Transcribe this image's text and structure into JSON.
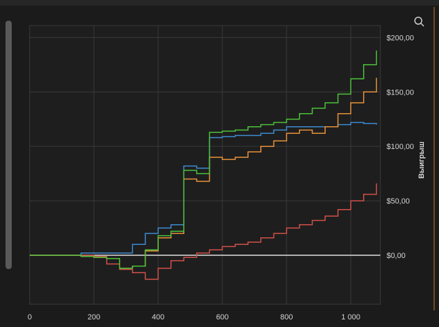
{
  "chart_data": {
    "type": "line",
    "y_label": "Выигрыш",
    "x": [
      0,
      40,
      80,
      120,
      160,
      200,
      240,
      280,
      320,
      360,
      400,
      440,
      480,
      520,
      560,
      600,
      640,
      680,
      720,
      760,
      800,
      840,
      880,
      920,
      960,
      1000,
      1040,
      1080
    ],
    "series": [
      {
        "color": "#3d8bd1",
        "values": [
          0,
          0,
          0,
          0,
          2,
          2,
          2,
          2,
          10,
          20,
          25,
          28,
          82,
          80,
          108,
          109,
          110,
          110,
          112,
          115,
          118,
          118,
          118,
          118,
          120,
          122,
          121,
          120
        ]
      },
      {
        "color": "#e8923a",
        "values": [
          0,
          0,
          0,
          0,
          -1,
          -2,
          -3,
          -12,
          -10,
          4,
          16,
          20,
          70,
          68,
          90,
          88,
          90,
          95,
          100,
          105,
          112,
          115,
          112,
          118,
          130,
          140,
          150,
          163
        ]
      },
      {
        "color": "#d2504a",
        "values": [
          0,
          0,
          0,
          0,
          0,
          -1,
          -8,
          -13,
          -16,
          -22,
          -12,
          -5,
          -2,
          2,
          5,
          8,
          10,
          12,
          16,
          20,
          25,
          28,
          32,
          36,
          42,
          50,
          56,
          66
        ]
      },
      {
        "color": "#4cc23a",
        "values": [
          0,
          0,
          0,
          0,
          -1,
          -2,
          -3,
          -12,
          -10,
          5,
          18,
          22,
          78,
          75,
          113,
          114,
          115,
          118,
          120,
          122,
          125,
          130,
          135,
          140,
          148,
          162,
          175,
          188
        ]
      }
    ],
    "reference_line": {
      "value": 0,
      "color": "#e0e0e0"
    },
    "xlim": [
      0,
      1092
    ],
    "ylim": [
      -45,
      211
    ],
    "xticks": [
      0,
      200,
      400,
      600,
      800,
      {
        "value": 1000,
        "label": "1 000"
      }
    ],
    "yticks": [
      {
        "value": 0,
        "label": "$0,00"
      },
      {
        "value": 50,
        "label": "$50,00"
      },
      {
        "value": 100,
        "label": "$100,00"
      },
      {
        "value": 150,
        "label": "$150,00"
      },
      {
        "value": 200,
        "label": "$200,00"
      }
    ],
    "grid": true
  }
}
